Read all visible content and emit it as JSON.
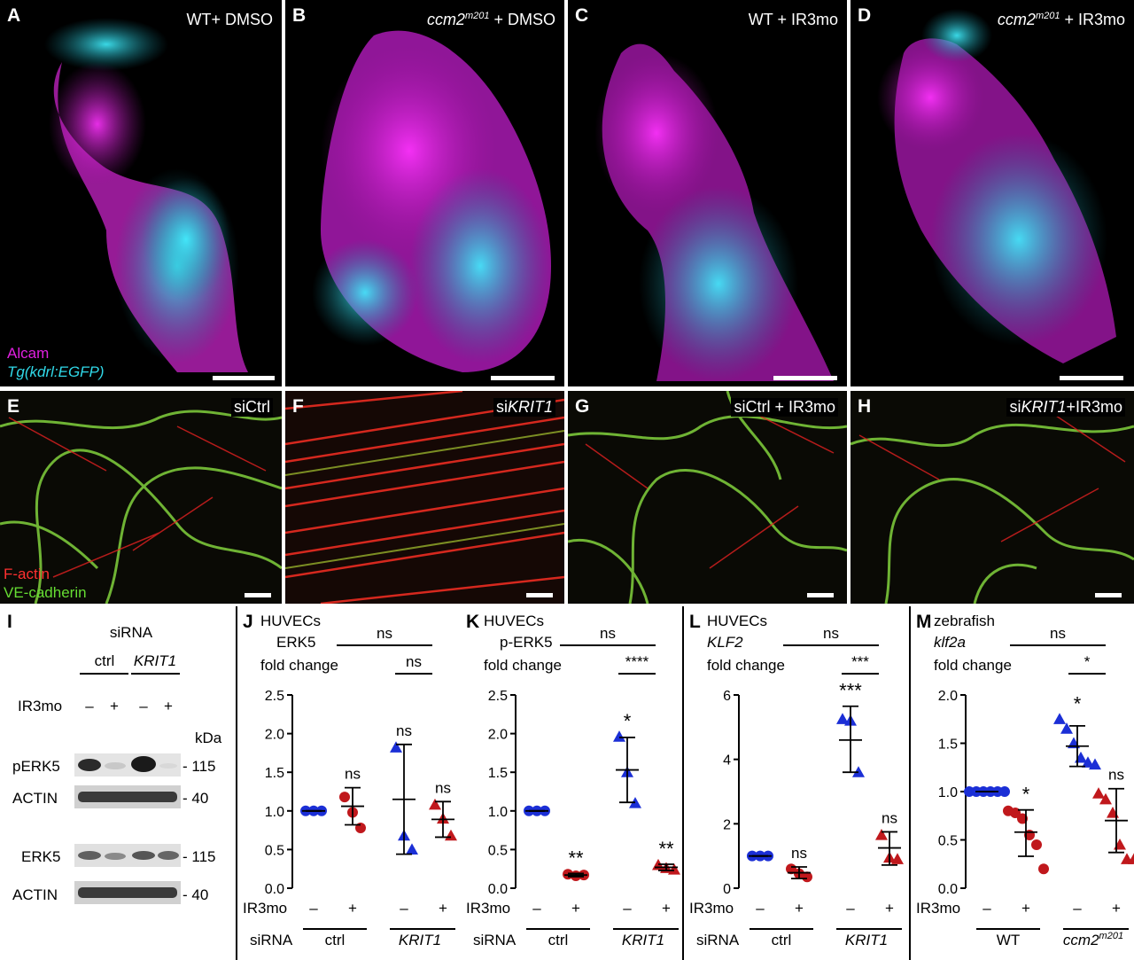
{
  "top_panels": [
    {
      "letter": "A",
      "title": "WT+ DMSO",
      "title_genotype": "",
      "title_sup": ""
    },
    {
      "letter": "B",
      "title": " + DMSO",
      "title_genotype": "ccm2",
      "title_sup": "m201"
    },
    {
      "letter": "C",
      "title": "WT + IR3mo",
      "title_genotype": "",
      "title_sup": ""
    },
    {
      "letter": "D",
      "title": " + IR3mo",
      "title_genotype": "ccm2",
      "title_sup": "m201"
    }
  ],
  "mid_panels": [
    {
      "letter": "E",
      "title": "siCtrl",
      "title_gene": ""
    },
    {
      "letter": "F",
      "title": "si",
      "title_gene": "KRIT1"
    },
    {
      "letter": "G",
      "title": "siCtrl + IR3mo",
      "title_gene": ""
    },
    {
      "letter": "H",
      "title": "si",
      "title_gene": "KRIT1",
      "title_suffix": "+IR3mo"
    }
  ],
  "legend_top": {
    "line1": "Alcam",
    "line2": "Tg(kdrl:EGFP)",
    "color1": "#e020e0",
    "color2": "#30d8e8"
  },
  "legend_mid": {
    "line1": "F-actin",
    "line2": "VE-cadherin",
    "color1": "#ff3030",
    "color2": "#66dd33"
  },
  "western": {
    "letter": "I",
    "siRNA_label": "siRNA",
    "col_ctrl": "ctrl",
    "col_krit1": "KRIT1",
    "ir3mo_label": "IR3mo",
    "minus": "–",
    "plus": "+",
    "kda_label": "kDa",
    "bands": [
      {
        "name": "pERK5",
        "kda": "- 115"
      },
      {
        "name": "ACTIN",
        "kda": "- 40"
      },
      {
        "name": "ERK5",
        "kda": "- 115"
      },
      {
        "name": "ACTIN",
        "kda": "- 40"
      }
    ]
  },
  "chart_data": [
    {
      "panel": "J",
      "type": "scatter",
      "title_line1": "HUVECs",
      "title_line2": "ERK5",
      "title_line3": "fold change",
      "yticks": [
        "0.0",
        "0.5",
        "1.0",
        "1.5",
        "2.0",
        "2.5"
      ],
      "ylim": [
        0,
        2.5
      ],
      "groups": [
        {
          "treatment": "–",
          "points": [
            1.0,
            1.0,
            1.0
          ],
          "mean": 1.0,
          "sd_low": 1.0,
          "sd_high": 1.0,
          "sig": "",
          "shape": "circle",
          "color": "#1b2fd6"
        },
        {
          "treatment": "+",
          "points": [
            1.18,
            0.98,
            0.78
          ],
          "mean": 1.06,
          "sd_low": 0.82,
          "sd_high": 1.3,
          "sig": "ns",
          "shape": "circle",
          "color": "#c0181c"
        },
        {
          "treatment": "–",
          "points": [
            1.82,
            0.68,
            0.5
          ],
          "mean": 1.15,
          "sd_low": 0.44,
          "sd_high": 1.86,
          "sig": "ns",
          "shape": "triangle",
          "color": "#1b2fd6"
        },
        {
          "treatment": "+",
          "points": [
            1.08,
            0.9,
            0.68
          ],
          "mean": 0.89,
          "sd_low": 0.66,
          "sd_high": 1.12,
          "sig": "ns",
          "shape": "triangle",
          "color": "#c0181c"
        }
      ],
      "bracket_top": "ns",
      "bracket_inner": "ns",
      "siRNA_label": "siRNA",
      "ir3mo_label": "IR3mo",
      "group1": "ctrl",
      "group2": "KRIT1",
      "group2_italic": true
    },
    {
      "panel": "K",
      "type": "scatter",
      "title_line1": "HUVECs",
      "title_line2": "p-ERK5",
      "title_line3": "fold change",
      "yticks": [
        "0.0",
        "0.5",
        "1.0",
        "1.5",
        "2.0",
        "2.5"
      ],
      "ylim": [
        0,
        2.5
      ],
      "groups": [
        {
          "treatment": "–",
          "points": [
            1.0,
            1.0,
            1.0
          ],
          "mean": 1.0,
          "sd_low": 1.0,
          "sd_high": 1.0,
          "sig": "",
          "shape": "circle",
          "color": "#1b2fd6"
        },
        {
          "treatment": "+",
          "points": [
            0.18,
            0.16,
            0.17
          ],
          "mean": 0.17,
          "sd_low": 0.15,
          "sd_high": 0.19,
          "sig": "**",
          "shape": "circle",
          "color": "#c0181c"
        },
        {
          "treatment": "–",
          "points": [
            1.96,
            1.5,
            1.1
          ],
          "mean": 1.53,
          "sd_low": 1.11,
          "sd_high": 1.95,
          "sig": "*",
          "shape": "triangle",
          "color": "#1b2fd6"
        },
        {
          "treatment": "+",
          "points": [
            0.3,
            0.26,
            0.24
          ],
          "mean": 0.27,
          "sd_low": 0.23,
          "sd_high": 0.31,
          "sig": "**",
          "shape": "triangle",
          "color": "#c0181c"
        }
      ],
      "bracket_top": "ns",
      "bracket_inner": "****",
      "siRNA_label": "siRNA",
      "ir3mo_label": "IR3mo",
      "group1": "ctrl",
      "group2": "KRIT1",
      "group2_italic": true
    },
    {
      "panel": "L",
      "type": "scatter",
      "title_line1": "HUVECs",
      "title_line2": "KLF2",
      "title_line2_italic": true,
      "title_line3": "fold change",
      "yticks": [
        "0",
        "2",
        "4",
        "6"
      ],
      "ylim": [
        0,
        6
      ],
      "groups": [
        {
          "treatment": "–",
          "points": [
            1.0,
            1.0,
            1.0
          ],
          "mean": 1.0,
          "sd_low": 1.0,
          "sd_high": 1.0,
          "sig": "",
          "shape": "circle",
          "color": "#1b2fd6"
        },
        {
          "treatment": "+",
          "points": [
            0.6,
            0.45,
            0.35
          ],
          "mean": 0.48,
          "sd_low": 0.3,
          "sd_high": 0.66,
          "sig": "ns",
          "shape": "circle",
          "color": "#c0181c"
        },
        {
          "treatment": "–",
          "points": [
            5.25,
            5.2,
            3.6
          ],
          "mean": 4.6,
          "sd_low": 3.6,
          "sd_high": 5.65,
          "sig": "***",
          "shape": "triangle",
          "color": "#1b2fd6"
        },
        {
          "treatment": "+",
          "points": [
            1.65,
            0.95,
            0.9
          ],
          "mean": 1.25,
          "sd_low": 0.72,
          "sd_high": 1.75,
          "sig": "ns",
          "shape": "triangle",
          "color": "#c0181c"
        }
      ],
      "bracket_top": "ns",
      "bracket_inner": "***",
      "siRNA_label": "siRNA",
      "ir3mo_label": "IR3mo",
      "group1": "ctrl",
      "group2": "KRIT1",
      "group2_italic": true
    },
    {
      "panel": "M",
      "type": "scatter",
      "title_line1": "zebrafish",
      "title_line2": "klf2a",
      "title_line2_italic": true,
      "title_line3": "fold change",
      "yticks": [
        "0.0",
        "0.5",
        "1.0",
        "1.5",
        "2.0"
      ],
      "ylim": [
        0,
        2.0
      ],
      "groups": [
        {
          "treatment": "–",
          "points": [
            1.0,
            1.0,
            1.0,
            1.0,
            1.0,
            1.0
          ],
          "mean": 1.0,
          "sd_low": 1.0,
          "sd_high": 1.0,
          "sig": "",
          "shape": "circle",
          "color": "#1b2fd6"
        },
        {
          "treatment": "+",
          "points": [
            0.8,
            0.78,
            0.72,
            0.55,
            0.45,
            0.2
          ],
          "mean": 0.58,
          "sd_low": 0.33,
          "sd_high": 0.81,
          "sig": "*",
          "shape": "circle",
          "color": "#c0181c"
        },
        {
          "treatment": "–",
          "points": [
            1.75,
            1.65,
            1.5,
            1.35,
            1.3,
            1.28
          ],
          "mean": 1.47,
          "sd_low": 1.26,
          "sd_high": 1.68,
          "sig": "*",
          "shape": "triangle",
          "color": "#1b2fd6"
        },
        {
          "treatment": "+",
          "points": [
            0.98,
            0.92,
            0.78,
            0.45,
            0.3,
            0.3
          ],
          "mean": 0.7,
          "sd_low": 0.37,
          "sd_high": 1.03,
          "sig": "ns",
          "shape": "triangle",
          "color": "#c0181c"
        }
      ],
      "bracket_top": "ns",
      "bracket_inner": "*",
      "siRNA_label": "",
      "ir3mo_label": "IR3mo",
      "group1": "WT",
      "group2": "ccm2",
      "group2_sup": "m201",
      "group2_italic": true
    }
  ]
}
